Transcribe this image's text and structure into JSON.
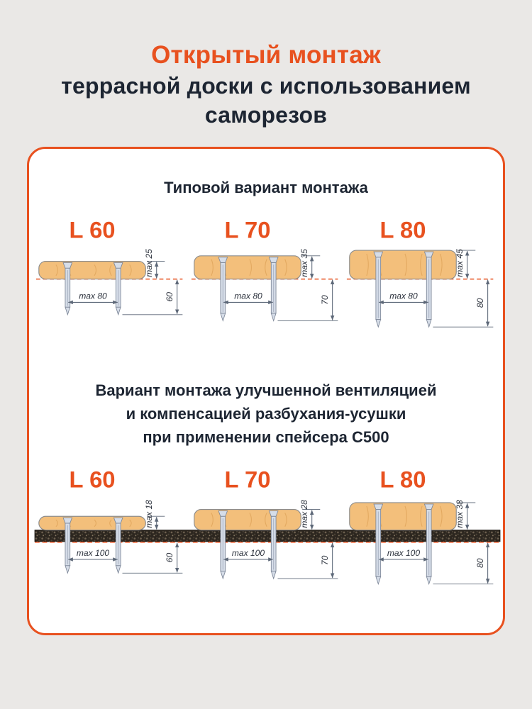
{
  "title": {
    "line1": "Открытый монтаж",
    "line2": "террасной доски с использованием",
    "line3": "саморезов"
  },
  "sections": [
    {
      "heading_lines": [
        "Типовой вариант монтажа"
      ],
      "figures": [
        {
          "label": "L 60",
          "thickness": "max 25",
          "spacing": "max 80",
          "embed": "60"
        },
        {
          "label": "L 70",
          "thickness": "max 35",
          "spacing": "max 80",
          "embed": "70"
        },
        {
          "label": "L 80",
          "thickness": "max 45",
          "spacing": "max 80",
          "embed": "80"
        }
      ]
    },
    {
      "heading_lines": [
        "Вариант монтажа улучшенной вентиляцией",
        "и компенсацией разбухания-усушки",
        "при применении спейсера С500"
      ],
      "figures": [
        {
          "label": "L 60",
          "thickness": "max 18",
          "spacing": "max 100",
          "embed": "60"
        },
        {
          "label": "L 70",
          "thickness": "max 28",
          "spacing": "max 100",
          "embed": "70"
        },
        {
          "label": "L 80",
          "thickness": "max 38",
          "spacing": "max 100",
          "embed": "80"
        }
      ]
    }
  ],
  "colors": {
    "accent": "#e8511f",
    "dark_text": "#1d2532",
    "baseline": "#e8511f",
    "board": "#f3bf7b",
    "board_grain": "#dfa45c",
    "board_stroke": "#8d8d8d",
    "screw": "#d6dde8",
    "screw_stroke": "#7d8798",
    "screw_highlight": "#a7b0c0",
    "dim": "#5d6878",
    "dim_text": "#2b313c",
    "strip": "#2c261f"
  }
}
